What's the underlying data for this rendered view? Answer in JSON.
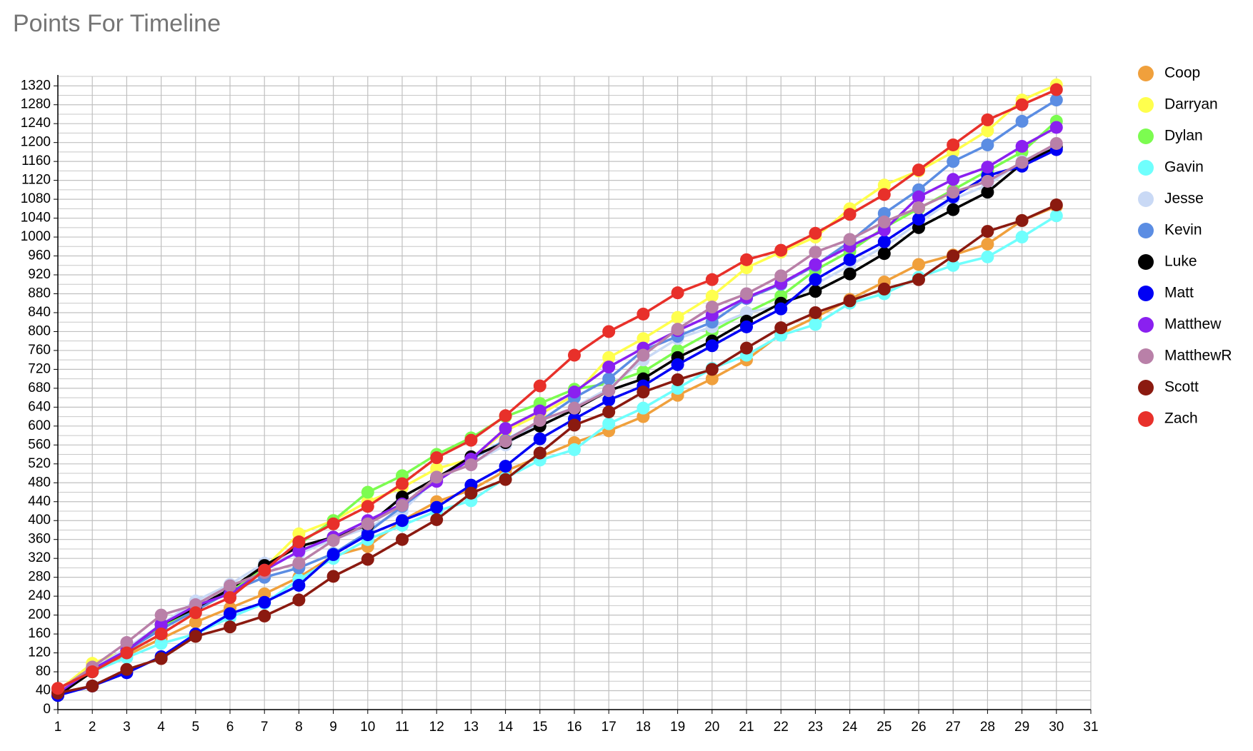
{
  "chart_data": {
    "type": "line",
    "title": "Points For Timeline",
    "x": [
      1,
      2,
      3,
      4,
      5,
      6,
      7,
      8,
      9,
      10,
      11,
      12,
      13,
      14,
      15,
      16,
      17,
      18,
      19,
      20,
      21,
      22,
      23,
      24,
      25,
      26,
      27,
      28,
      29,
      30
    ],
    "xlim": [
      1,
      31
    ],
    "xticks": [
      1,
      2,
      3,
      4,
      5,
      6,
      7,
      8,
      9,
      10,
      11,
      12,
      13,
      14,
      15,
      16,
      17,
      18,
      19,
      20,
      21,
      22,
      23,
      24,
      25,
      26,
      27,
      28,
      29,
      30,
      31
    ],
    "ylim": [
      0,
      1340
    ],
    "yticks": [
      0,
      40,
      80,
      120,
      160,
      200,
      240,
      280,
      320,
      360,
      400,
      440,
      480,
      520,
      560,
      600,
      640,
      680,
      720,
      760,
      800,
      840,
      880,
      920,
      960,
      1000,
      1040,
      1080,
      1120,
      1160,
      1200,
      1240,
      1280,
      1320
    ],
    "grid": true,
    "legend": "right",
    "series": [
      {
        "name": "Coop",
        "color": "#f0a03c",
        "values": [
          40,
          85,
          115,
          150,
          185,
          215,
          245,
          280,
          325,
          345,
          400,
          440,
          465,
          505,
          535,
          565,
          590,
          620,
          665,
          700,
          740,
          795,
          830,
          868,
          905,
          942,
          962,
          985,
          1035,
          1065
        ]
      },
      {
        "name": "Darryan",
        "color": "#ffff4d",
        "values": [
          40,
          98,
          125,
          175,
          210,
          250,
          300,
          372,
          400,
          440,
          470,
          510,
          530,
          590,
          625,
          665,
          745,
          785,
          830,
          875,
          935,
          968,
          1000,
          1060,
          1110,
          1140,
          1180,
          1225,
          1290,
          1322
        ]
      },
      {
        "name": "Dylan",
        "color": "#7cfc50",
        "values": [
          40,
          85,
          130,
          175,
          210,
          250,
          300,
          350,
          400,
          460,
          495,
          540,
          575,
          620,
          648,
          678,
          690,
          715,
          760,
          800,
          840,
          875,
          930,
          970,
          1020,
          1060,
          1100,
          1140,
          1180,
          1245
        ]
      },
      {
        "name": "Gavin",
        "color": "#6ffffd",
        "values": [
          35,
          80,
          110,
          140,
          160,
          195,
          225,
          275,
          320,
          360,
          390,
          420,
          442,
          490,
          528,
          550,
          605,
          638,
          680,
          722,
          750,
          792,
          815,
          860,
          880,
          915,
          940,
          958,
          1000,
          1045
        ]
      },
      {
        "name": "Jesse",
        "color": "#c9d9f5",
        "values": [
          35,
          85,
          130,
          180,
          230,
          265,
          310,
          330,
          360,
          385,
          420,
          490,
          520,
          560,
          610,
          640,
          680,
          740,
          785,
          810,
          840,
          855,
          900,
          940,
          980,
          1030,
          1080,
          1110,
          1160,
          1195
        ]
      },
      {
        "name": "Kevin",
        "color": "#5b8de3",
        "values": [
          35,
          85,
          125,
          170,
          210,
          250,
          280,
          300,
          330,
          375,
          430,
          485,
          530,
          570,
          610,
          660,
          700,
          760,
          790,
          820,
          870,
          900,
          940,
          990,
          1050,
          1100,
          1160,
          1195,
          1245,
          1290
        ]
      },
      {
        "name": "Luke",
        "color": "#000000",
        "values": [
          30,
          80,
          125,
          180,
          215,
          255,
          305,
          345,
          365,
          390,
          450,
          490,
          535,
          565,
          600,
          635,
          675,
          700,
          745,
          780,
          822,
          860,
          885,
          922,
          965,
          1020,
          1058,
          1095,
          1155,
          1190
        ]
      },
      {
        "name": "Matt",
        "color": "#0000f5",
        "values": [
          30,
          50,
          78,
          112,
          160,
          203,
          227,
          263,
          328,
          370,
          400,
          428,
          475,
          515,
          573,
          615,
          655,
          685,
          730,
          770,
          810,
          848,
          910,
          952,
          990,
          1038,
          1085,
          1130,
          1150,
          1185
        ]
      },
      {
        "name": "Matthew",
        "color": "#8a20f0",
        "values": [
          35,
          85,
          125,
          180,
          220,
          245,
          295,
          335,
          365,
          400,
          435,
          483,
          530,
          595,
          632,
          672,
          725,
          765,
          802,
          835,
          872,
          902,
          942,
          980,
          1015,
          1085,
          1122,
          1148,
          1192,
          1232
        ]
      },
      {
        "name": "MatthewR",
        "color": "#b980a8",
        "values": [
          40,
          90,
          142,
          200,
          222,
          262,
          290,
          310,
          358,
          393,
          432,
          492,
          518,
          568,
          612,
          638,
          675,
          750,
          805,
          852,
          880,
          918,
          968,
          995,
          1032,
          1062,
          1095,
          1118,
          1158,
          1198
        ]
      },
      {
        "name": "Scott",
        "color": "#8b1a10",
        "values": [
          35,
          50,
          85,
          108,
          155,
          175,
          198,
          232,
          282,
          318,
          360,
          402,
          458,
          487,
          543,
          602,
          630,
          672,
          698,
          720,
          765,
          808,
          840,
          865,
          890,
          910,
          960,
          1012,
          1035,
          1068
        ]
      },
      {
        "name": "Zach",
        "color": "#e8302a",
        "values": [
          45,
          80,
          120,
          160,
          205,
          237,
          295,
          355,
          393,
          430,
          478,
          533,
          570,
          622,
          685,
          750,
          800,
          837,
          882,
          910,
          952,
          972,
          1008,
          1048,
          1090,
          1142,
          1195,
          1248,
          1280,
          1312
        ]
      }
    ]
  }
}
